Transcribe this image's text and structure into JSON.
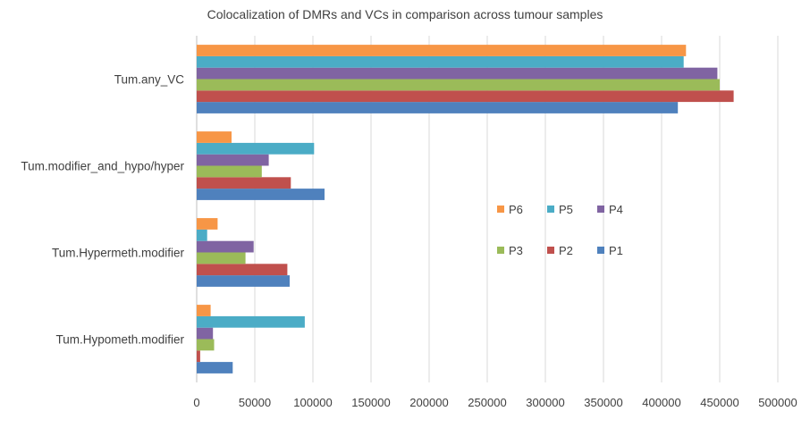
{
  "chart_data": {
    "type": "bar",
    "orientation": "horizontal",
    "title": "Colocalization of DMRs and VCs in comparison across tumour samples",
    "xlabel": "",
    "ylabel": "",
    "xlim": [
      0,
      500000
    ],
    "x_ticks": [
      "0",
      "50000",
      "100000",
      "150000",
      "200000",
      "250000",
      "300000",
      "350000",
      "400000",
      "450000",
      "500000"
    ],
    "categories": [
      "Tum.Hypometh.modifier",
      "Tum.Hypermeth.modifier",
      "Tum.modifier_and_hypo/hyper",
      "Tum.any_VC"
    ],
    "series": [
      {
        "name": "P1",
        "color": "#4f81bd",
        "values": [
          31000,
          80000,
          110000,
          414000
        ]
      },
      {
        "name": "P2",
        "color": "#c0504d",
        "values": [
          3000,
          78000,
          81000,
          462000
        ]
      },
      {
        "name": "P3",
        "color": "#9bbb59",
        "values": [
          15000,
          42000,
          56000,
          450000
        ]
      },
      {
        "name": "P4",
        "color": "#8064a2",
        "values": [
          14000,
          49000,
          62000,
          448000
        ]
      },
      {
        "name": "P5",
        "color": "#4bacc6",
        "values": [
          93000,
          9000,
          101000,
          419000
        ]
      },
      {
        "name": "P6",
        "color": "#f79646",
        "values": [
          12000,
          18000,
          30000,
          421000
        ]
      }
    ],
    "grid": true,
    "legend": "inside-right"
  }
}
